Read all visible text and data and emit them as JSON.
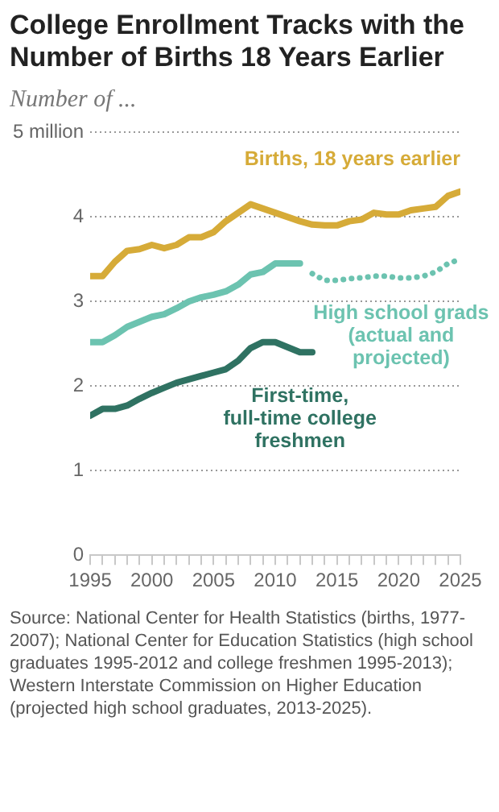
{
  "chart_data": {
    "type": "line",
    "title": "College Enrollment Tracks with the Number of Births 18 Years Earlier",
    "subtitle": "Number of ...",
    "x": [
      1995,
      1996,
      1997,
      1998,
      1999,
      2000,
      2001,
      2002,
      2003,
      2004,
      2005,
      2006,
      2007,
      2008,
      2009,
      2010,
      2011,
      2012,
      2013,
      2014,
      2015,
      2016,
      2017,
      2018,
      2019,
      2020,
      2021,
      2022,
      2023,
      2024,
      2025
    ],
    "series": [
      {
        "name": "Births, 18 years earlier",
        "color": "#d6ab38",
        "values": [
          3.3,
          3.3,
          3.47,
          3.6,
          3.62,
          3.67,
          3.63,
          3.67,
          3.76,
          3.76,
          3.82,
          3.95,
          4.05,
          4.15,
          4.1,
          4.05,
          4.0,
          3.95,
          3.91,
          3.9,
          3.9,
          3.95,
          3.97,
          4.05,
          4.03,
          4.03,
          4.08,
          4.1,
          4.12,
          4.25,
          4.3
        ]
      },
      {
        "name": "High school grads (actual and projected)",
        "color": "#6cc3b0",
        "x": [
          1995,
          1996,
          1997,
          1998,
          1999,
          2000,
          2001,
          2002,
          2003,
          2004,
          2005,
          2006,
          2007,
          2008,
          2009,
          2010,
          2011,
          2012
        ],
        "values": [
          2.52,
          2.52,
          2.6,
          2.7,
          2.76,
          2.82,
          2.85,
          2.92,
          3.0,
          3.05,
          3.08,
          3.12,
          3.2,
          3.32,
          3.35,
          3.45,
          3.45,
          3.45
        ]
      },
      {
        "color": "#6cc3b0",
        "line_style": "dotted",
        "x": [
          2013,
          2014,
          2015,
          2016,
          2017,
          2018,
          2019,
          2020,
          2021,
          2022,
          2023,
          2024,
          2025
        ],
        "values": [
          3.33,
          3.25,
          3.25,
          3.27,
          3.28,
          3.3,
          3.3,
          3.28,
          3.28,
          3.3,
          3.35,
          3.45,
          3.5
        ]
      },
      {
        "name": "First-time, full-time college freshmen",
        "color": "#2f7262",
        "x": [
          1995,
          1996,
          1997,
          1998,
          1999,
          2000,
          2001,
          2002,
          2003,
          2004,
          2005,
          2006,
          2007,
          2008,
          2009,
          2010,
          2011,
          2012,
          2013
        ],
        "values": [
          1.65,
          1.73,
          1.73,
          1.77,
          1.85,
          1.92,
          1.98,
          2.04,
          2.08,
          2.12,
          2.16,
          2.2,
          2.3,
          2.45,
          2.52,
          2.52,
          2.46,
          2.4,
          2.4
        ]
      }
    ],
    "xlim": [
      1995,
      2025
    ],
    "xticks": [
      1995,
      {
        "value": 1996,
        "label": null
      },
      {
        "value": 1997,
        "label": null
      },
      {
        "value": 1998,
        "label": null
      },
      {
        "value": 1999,
        "label": null
      },
      2000,
      {
        "value": 2001,
        "label": null
      },
      {
        "value": 2002,
        "label": null
      },
      {
        "value": 2003,
        "label": null
      },
      {
        "value": 2004,
        "label": null
      },
      2005,
      {
        "value": 2006,
        "label": null
      },
      {
        "value": 2007,
        "label": null
      },
      {
        "value": 2008,
        "label": null
      },
      {
        "value": 2009,
        "label": null
      },
      2010,
      {
        "value": 2011,
        "label": null
      },
      {
        "value": 2012,
        "label": null
      },
      {
        "value": 2013,
        "label": null
      },
      {
        "value": 2014,
        "label": null
      },
      2015,
      {
        "value": 2016,
        "label": null
      },
      {
        "value": 2017,
        "label": null
      },
      {
        "value": 2018,
        "label": null
      },
      {
        "value": 2019,
        "label": null
      },
      2020,
      {
        "value": 2021,
        "label": null
      },
      {
        "value": 2022,
        "label": null
      },
      {
        "value": 2023,
        "label": null
      },
      {
        "value": 2024,
        "label": null
      },
      2025
    ],
    "ylim": [
      0,
      5
    ],
    "yticks": [
      0,
      1,
      2,
      3,
      4,
      {
        "value": 5,
        "label": "5 million"
      }
    ],
    "grid": "y",
    "legend": false,
    "marker": "none",
    "line_style": "solid",
    "annotations": [
      "Source: National Center for Health Statistics (births, 1977-2007); National Center for Education Statistics (high school graduates 1995-2012 and college freshmen 1995-2013); Western Interstate Commission on Higher Education (projected high school graduates, 2013-2025)."
    ]
  }
}
